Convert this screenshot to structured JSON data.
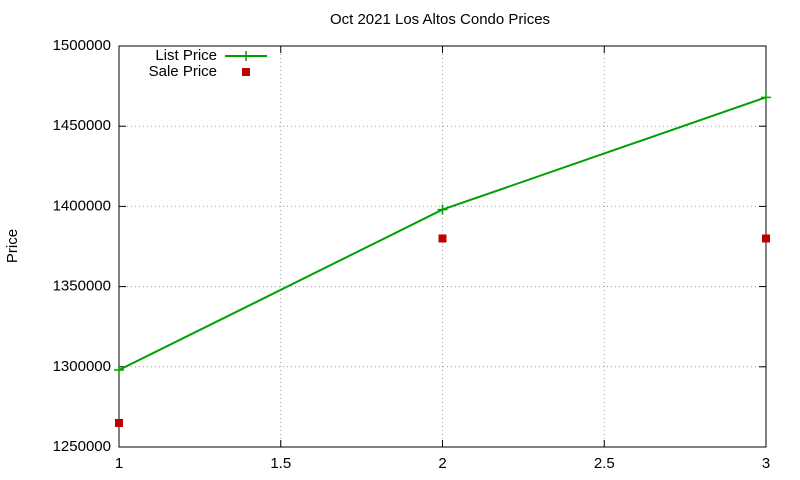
{
  "chart_data": {
    "type": "line",
    "title": "Oct 2021 Los Altos Condo Prices",
    "y_label": "Price",
    "x": [
      1,
      2,
      3
    ],
    "series": [
      {
        "name": "List Price",
        "type": "line",
        "color": "#00a000",
        "values": [
          1298000,
          1398000,
          1468000
        ]
      },
      {
        "name": "Sale Price",
        "type": "scatter",
        "color": "#c00000",
        "values": [
          1265000,
          1380000,
          1380000
        ]
      }
    ],
    "xlim": [
      1,
      3
    ],
    "xticks": [
      1,
      1.5,
      2,
      2.5,
      3
    ],
    "ylim": [
      1250000,
      1500000
    ],
    "yticks": [
      1250000,
      1300000,
      1350000,
      1400000,
      1450000,
      1500000
    ],
    "grid": true,
    "legend": "top-left"
  }
}
